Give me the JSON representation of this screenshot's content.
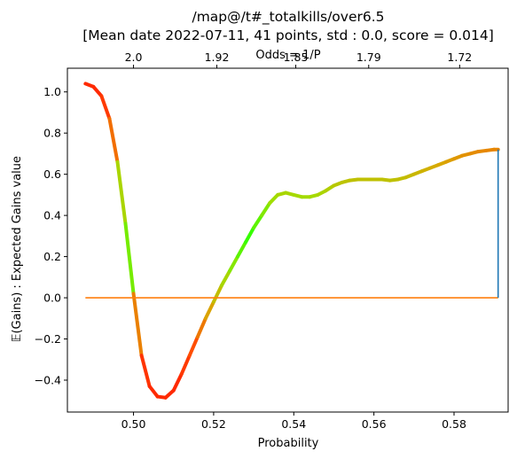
{
  "chart_data": {
    "type": "line",
    "title_line1": "/map@/t#_totalkills/over6.5",
    "title_line2": "[Mean date 2022-07-11, 41 points, std : 0.0, score = 0.014]",
    "xlabel": "Probability",
    "ylabel": "𝔼(Gains) : Expected Gains value",
    "top_xlabel": "Odds = 1/P",
    "xlim": [
      0.4835,
      0.5935
    ],
    "ylim": [
      -0.555,
      1.115
    ],
    "x_ticks": [
      0.5,
      0.52,
      0.54,
      0.56,
      0.58
    ],
    "x_tick_labels": [
      "0.50",
      "0.52",
      "0.54",
      "0.56",
      "0.58"
    ],
    "y_ticks": [
      -0.4,
      -0.2,
      0.0,
      0.2,
      0.4,
      0.6,
      0.8,
      1.0
    ],
    "y_tick_labels": [
      "−0.4",
      "−0.2",
      "0.0",
      "0.2",
      "0.4",
      "0.6",
      "0.8",
      "1.0"
    ],
    "top_ticks": [
      0.5,
      0.5208,
      0.5405,
      0.5587,
      0.5814
    ],
    "top_tick_labels": [
      "2.0",
      "1.92",
      "1.85",
      "1.79",
      "1.72"
    ],
    "gradient_colors": [
      "#ff2a00",
      "#ff5000",
      "#d8a800",
      "#9ee000",
      "#33ff00"
    ],
    "series": [
      {
        "style": "gradient-line",
        "x": [
          0.488,
          0.49,
          0.492,
          0.494,
          0.496,
          0.498,
          0.5,
          0.502,
          0.504,
          0.506,
          0.508,
          0.51,
          0.512,
          0.514,
          0.516,
          0.518,
          0.52,
          0.522,
          0.524,
          0.526,
          0.528,
          0.53,
          0.532,
          0.534,
          0.536,
          0.538,
          0.54,
          0.542,
          0.544,
          0.546,
          0.548,
          0.55,
          0.552,
          0.554,
          0.556,
          0.558,
          0.56,
          0.562,
          0.564,
          0.566,
          0.568,
          0.57,
          0.572,
          0.574,
          0.576,
          0.578,
          0.58,
          0.582,
          0.584,
          0.586,
          0.588,
          0.59,
          0.591
        ],
        "y": [
          1.04,
          1.025,
          0.98,
          0.87,
          0.66,
          0.36,
          0.02,
          -0.28,
          -0.43,
          -0.48,
          -0.485,
          -0.45,
          -0.37,
          -0.28,
          -0.19,
          -0.1,
          -0.02,
          0.06,
          0.13,
          0.2,
          0.27,
          0.34,
          0.4,
          0.46,
          0.5,
          0.51,
          0.5,
          0.49,
          0.49,
          0.5,
          0.52,
          0.545,
          0.56,
          0.57,
          0.575,
          0.575,
          0.575,
          0.575,
          0.57,
          0.575,
          0.585,
          0.6,
          0.615,
          0.63,
          0.645,
          0.66,
          0.675,
          0.69,
          0.7,
          0.71,
          0.715,
          0.72,
          0.72
        ]
      },
      {
        "style": "line",
        "color": "#ff7f0e",
        "x": [
          0.488,
          0.591
        ],
        "y": [
          0.0,
          0.0
        ]
      },
      {
        "style": "line",
        "color": "#1f77b4",
        "x": [
          0.591,
          0.591
        ],
        "y": [
          0.0,
          0.72
        ]
      }
    ]
  }
}
